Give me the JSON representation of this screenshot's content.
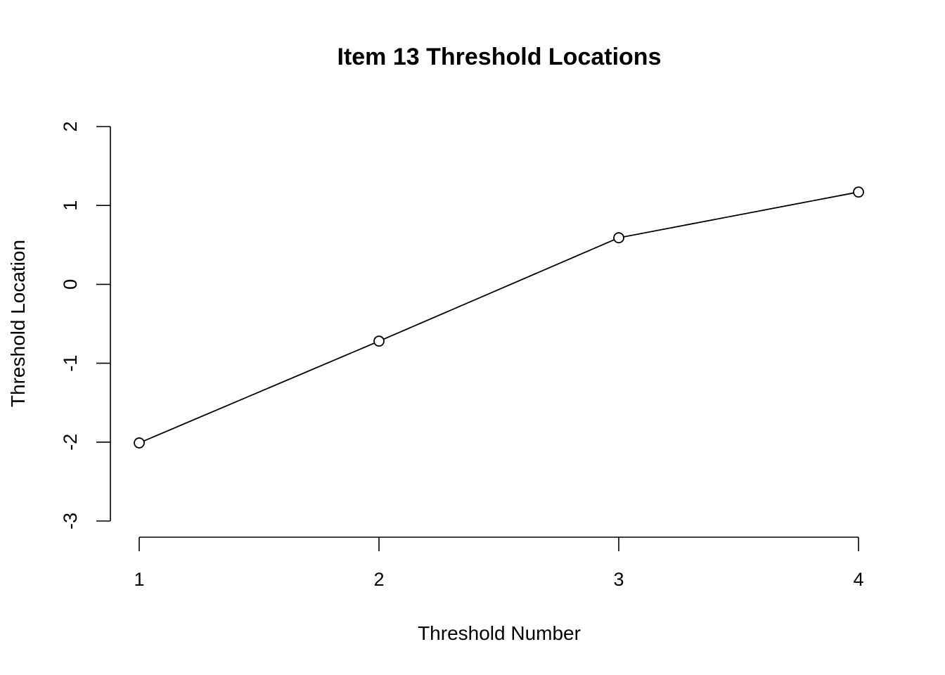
{
  "chart_data": {
    "type": "line",
    "title": "Item  13 Threshold Locations",
    "xlabel": "Threshold Number",
    "ylabel": "Threshold Location",
    "x": [
      1,
      2,
      3,
      4
    ],
    "series": [
      {
        "values": [
          -2.01,
          -0.72,
          0.59,
          1.17
        ],
        "marker": "open-circle",
        "color": "#000000"
      }
    ],
    "xticks": [
      "1",
      "2",
      "3",
      "4"
    ],
    "yticks": [
      "-3",
      "-2",
      "-1",
      "0",
      "1",
      "2"
    ],
    "xlim": [
      1,
      4
    ],
    "ylim": [
      -3,
      2
    ],
    "grid": false,
    "legend": "none"
  }
}
